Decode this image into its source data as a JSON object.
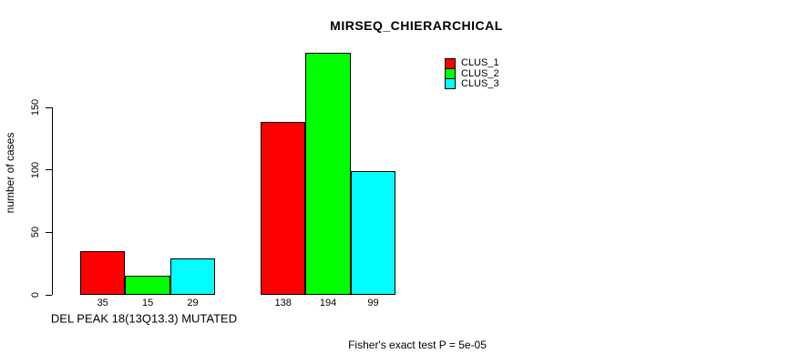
{
  "chart_data": {
    "type": "bar",
    "title": "MIRSEQ_CHIERARCHICAL",
    "ylabel": "number of cases",
    "xlabel": "DEL PEAK 18(13Q13.3) MUTATED",
    "annotation": "Fisher's exact test P = 5e-05",
    "ylim": [
      0,
      150
    ],
    "yticks": [
      0,
      50,
      100,
      150
    ],
    "grid": false,
    "legend_position": "top-right",
    "categories": [
      "DEL PEAK 18(13Q13.3) MUTATED",
      ""
    ],
    "series": [
      {
        "name": "CLUS_1",
        "color": "#FF0000",
        "values": [
          35,
          138
        ]
      },
      {
        "name": "CLUS_2",
        "color": "#00FF00",
        "values": [
          15,
          194
        ]
      },
      {
        "name": "CLUS_3",
        "color": "#00FFFF",
        "values": [
          29,
          99
        ]
      }
    ],
    "bar_value_labels": [
      [
        35,
        15,
        29
      ],
      [
        138,
        194,
        99
      ]
    ]
  }
}
